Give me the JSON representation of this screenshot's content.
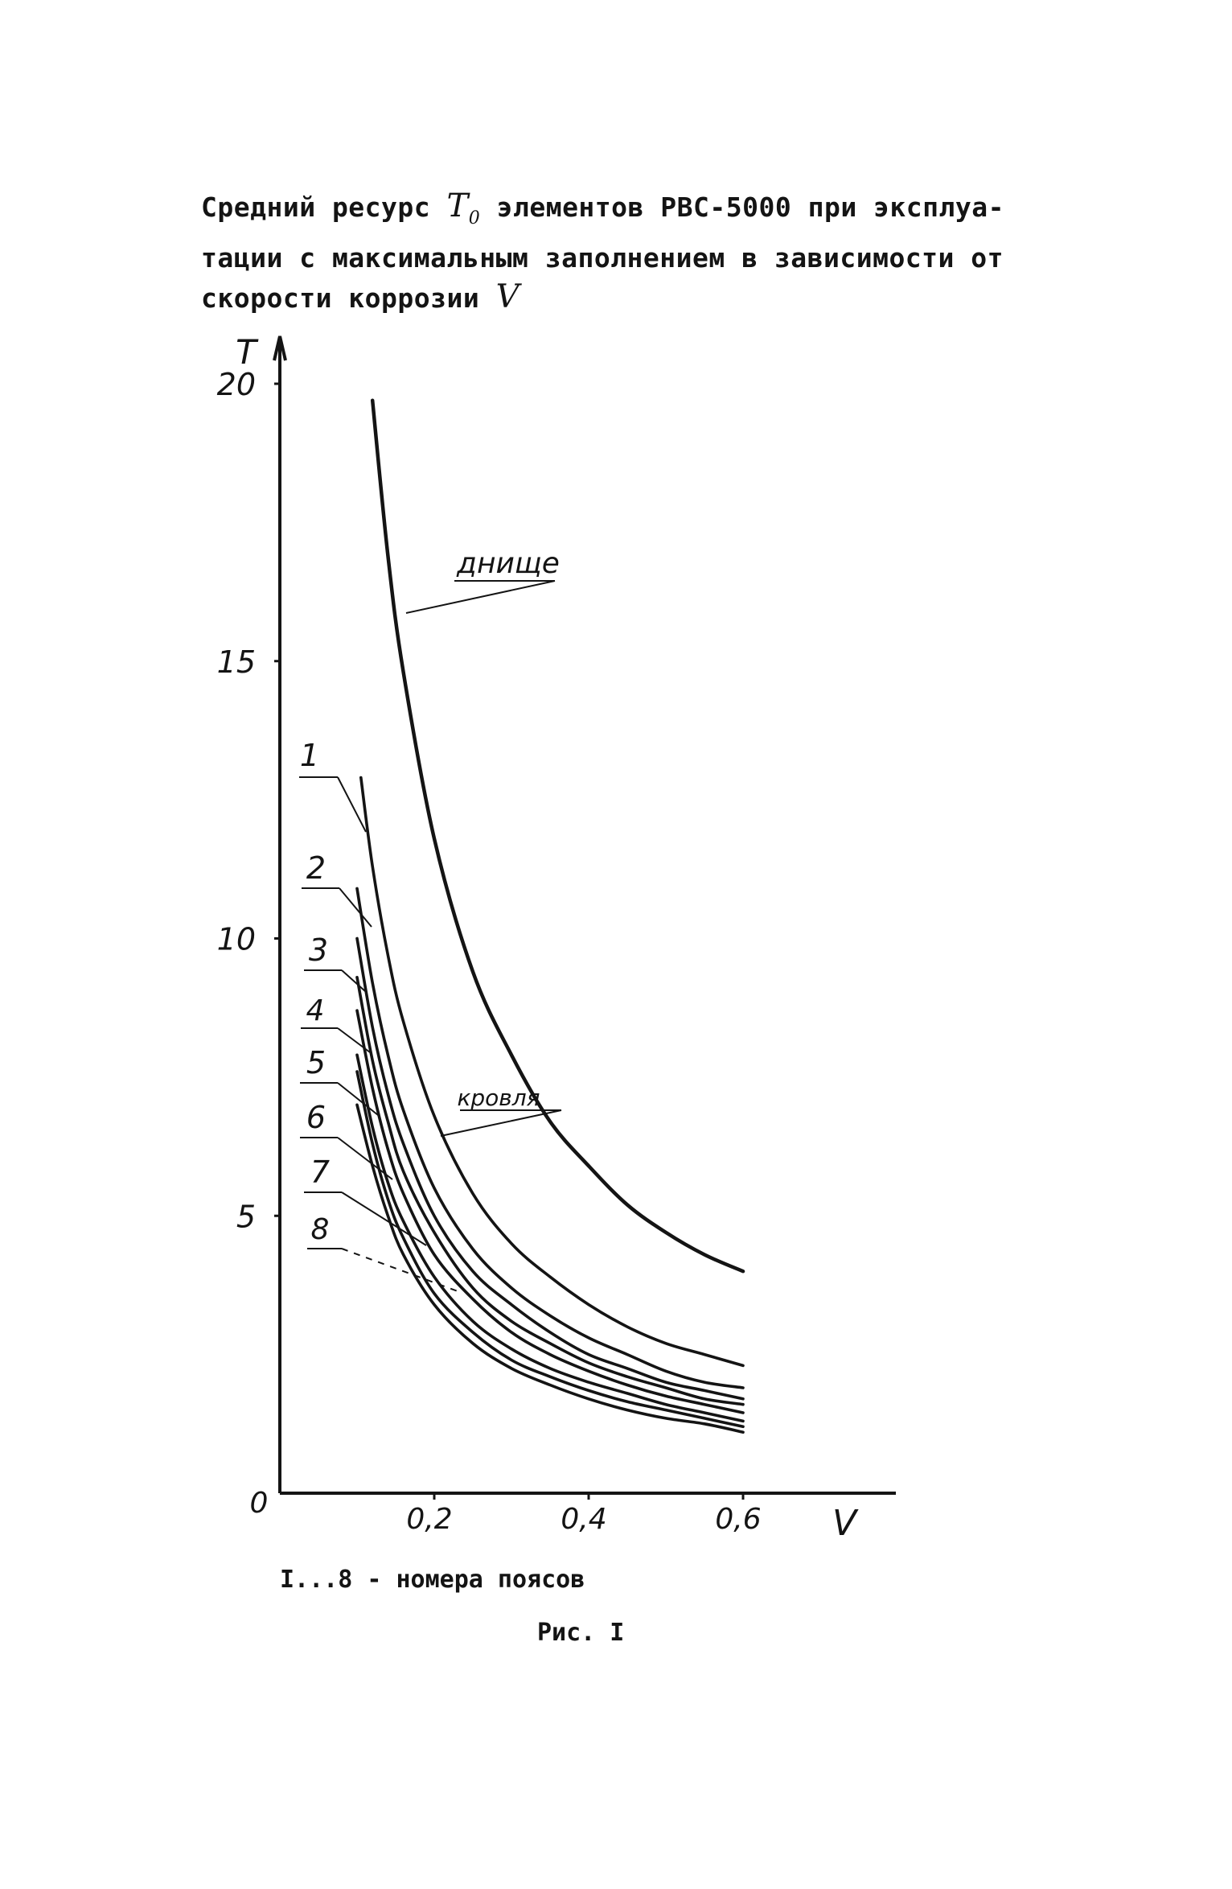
{
  "caption": {
    "line1_before": "Средний ресурс",
    "symbol_T": "T",
    "symbol_T_sub": "0",
    "line1_after": "элементов РВС-5000 при эксплуа-",
    "line2": "тации с максимальным заполнением в зависимости от",
    "line3_before": "скорости коррозии",
    "symbol_V": "V"
  },
  "note": "I...8 - номера поясов",
  "figure_label": "Рис. I",
  "chart_data": {
    "type": "line",
    "xlabel": "V",
    "ylabel": "T",
    "xlim": [
      0,
      0.8
    ],
    "ylim": [
      0,
      20
    ],
    "origin_label": "0",
    "x_ticks": [
      {
        "value": 0.2,
        "label": "0,2"
      },
      {
        "value": 0.4,
        "label": "0,4"
      },
      {
        "value": 0.6,
        "label": "0,6"
      }
    ],
    "y_ticks": [
      {
        "value": 5,
        "label": "5"
      },
      {
        "value": 10,
        "label": "10"
      },
      {
        "value": 15,
        "label": "15"
      },
      {
        "value": 20,
        "label": "20"
      }
    ],
    "series": [
      {
        "name": "днище",
        "x": [
          0.12,
          0.14,
          0.16,
          0.2,
          0.25,
          0.3,
          0.35,
          0.4,
          0.45,
          0.5,
          0.55,
          0.6
        ],
        "y": [
          19.7,
          16.9,
          14.8,
          11.8,
          9.4,
          7.9,
          6.7,
          5.9,
          5.2,
          4.7,
          4.3,
          4.0
        ]
      },
      {
        "name": "1",
        "x": [
          0.105,
          0.12,
          0.14,
          0.16,
          0.2,
          0.25,
          0.3,
          0.35,
          0.4,
          0.45,
          0.5,
          0.55,
          0.6
        ],
        "y": [
          12.9,
          11.3,
          9.7,
          8.5,
          6.8,
          5.4,
          4.5,
          3.9,
          3.4,
          3.0,
          2.7,
          2.5,
          2.3
        ]
      },
      {
        "name": "2",
        "x": [
          0.1,
          0.12,
          0.14,
          0.16,
          0.2,
          0.25,
          0.3,
          0.35,
          0.4,
          0.45,
          0.5,
          0.55,
          0.6
        ],
        "y": [
          10.9,
          9.2,
          7.9,
          6.9,
          5.5,
          4.4,
          3.7,
          3.2,
          2.8,
          2.5,
          2.2,
          2.0,
          1.9
        ]
      },
      {
        "name": "3",
        "x": [
          0.1,
          0.12,
          0.14,
          0.16,
          0.2,
          0.25,
          0.3,
          0.35,
          0.4,
          0.45,
          0.5,
          0.55,
          0.6
        ],
        "y": [
          10.0,
          8.4,
          7.2,
          6.3,
          5.0,
          4.0,
          3.4,
          2.9,
          2.5,
          2.25,
          2.0,
          1.85,
          1.7
        ]
      },
      {
        "name": "4",
        "x": [
          0.1,
          0.12,
          0.14,
          0.16,
          0.2,
          0.25,
          0.3,
          0.35,
          0.4,
          0.45,
          0.5,
          0.55,
          0.6
        ],
        "y": [
          9.3,
          7.8,
          6.7,
          5.8,
          4.7,
          3.7,
          3.1,
          2.7,
          2.35,
          2.1,
          1.9,
          1.7,
          1.6
        ]
      },
      {
        "name": "5",
        "x": [
          0.1,
          0.12,
          0.14,
          0.16,
          0.2,
          0.25,
          0.3,
          0.35,
          0.4,
          0.45,
          0.5,
          0.55,
          0.6
        ],
        "y": [
          8.7,
          7.3,
          6.2,
          5.4,
          4.3,
          3.5,
          2.9,
          2.5,
          2.2,
          1.95,
          1.75,
          1.6,
          1.45
        ]
      },
      {
        "name": "6",
        "x": [
          0.1,
          0.12,
          0.14,
          0.16,
          0.2,
          0.25,
          0.3,
          0.35,
          0.4,
          0.45,
          0.5,
          0.55,
          0.6
        ],
        "y": [
          7.9,
          6.6,
          5.6,
          4.9,
          3.9,
          3.1,
          2.6,
          2.25,
          2.0,
          1.8,
          1.6,
          1.45,
          1.3
        ]
      },
      {
        "name": "7",
        "x": [
          0.1,
          0.12,
          0.14,
          0.16,
          0.2,
          0.25,
          0.3,
          0.35,
          0.4,
          0.45,
          0.5,
          0.55,
          0.6
        ],
        "y": [
          7.6,
          6.3,
          5.3,
          4.6,
          3.6,
          2.9,
          2.4,
          2.1,
          1.85,
          1.65,
          1.5,
          1.35,
          1.2
        ]
      },
      {
        "name": "8",
        "x": [
          0.1,
          0.12,
          0.14,
          0.16,
          0.2,
          0.25,
          0.3,
          0.35,
          0.4,
          0.45,
          0.5,
          0.55,
          0.6
        ],
        "y": [
          7.0,
          5.9,
          5.0,
          4.3,
          3.4,
          2.7,
          2.25,
          1.95,
          1.7,
          1.5,
          1.35,
          1.25,
          1.1
        ]
      }
    ],
    "annotations": [
      {
        "text": "днище",
        "series": "днище"
      },
      {
        "text": "кровля",
        "series": "1"
      },
      {
        "text": "1",
        "series": "1"
      },
      {
        "text": "2",
        "series": "2"
      },
      {
        "text": "3",
        "series": "3"
      },
      {
        "text": "4",
        "series": "4"
      },
      {
        "text": "5",
        "series": "5"
      },
      {
        "text": "6",
        "series": "6"
      },
      {
        "text": "7",
        "series": "7"
      },
      {
        "text": "8",
        "series": "8"
      }
    ],
    "grid": false,
    "legend": "none",
    "line_color": "#141414"
  }
}
